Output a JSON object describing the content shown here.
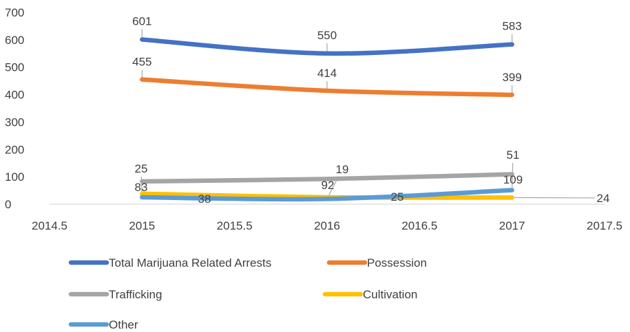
{
  "chart_data": {
    "type": "line",
    "x": [
      2015,
      2016,
      2017
    ],
    "xlim": [
      2014.5,
      2017.5
    ],
    "ylim": [
      0,
      700
    ],
    "x_ticks": [
      "2014.5",
      "2015",
      "2015.5",
      "2016",
      "2016.5",
      "2017",
      "2017.5"
    ],
    "y_ticks": [
      "700",
      "600",
      "500",
      "400",
      "300",
      "200",
      "100",
      "0"
    ],
    "grid": false,
    "legend_position": "bottom",
    "series": [
      {
        "name": "Total Marijuana Related Arrests",
        "color": "#4472C4",
        "values": [
          601,
          550,
          583
        ],
        "labels": [
          "601",
          "550",
          "583"
        ]
      },
      {
        "name": "Possession",
        "color": "#ED7D31",
        "values": [
          455,
          414,
          399
        ],
        "labels": [
          "455",
          "414",
          "399"
        ]
      },
      {
        "name": "Trafficking",
        "color": "#A5A5A5",
        "values": [
          83,
          92,
          109
        ],
        "labels": [
          "83",
          "92",
          "109"
        ]
      },
      {
        "name": "Cultivation",
        "color": "#FFC000",
        "values": [
          38,
          25,
          24
        ],
        "labels": [
          "38",
          "25",
          "24"
        ]
      },
      {
        "name": "Other",
        "color": "#5B9BD5",
        "values": [
          25,
          19,
          51
        ],
        "labels": [
          "25",
          "19",
          "51"
        ]
      }
    ]
  }
}
